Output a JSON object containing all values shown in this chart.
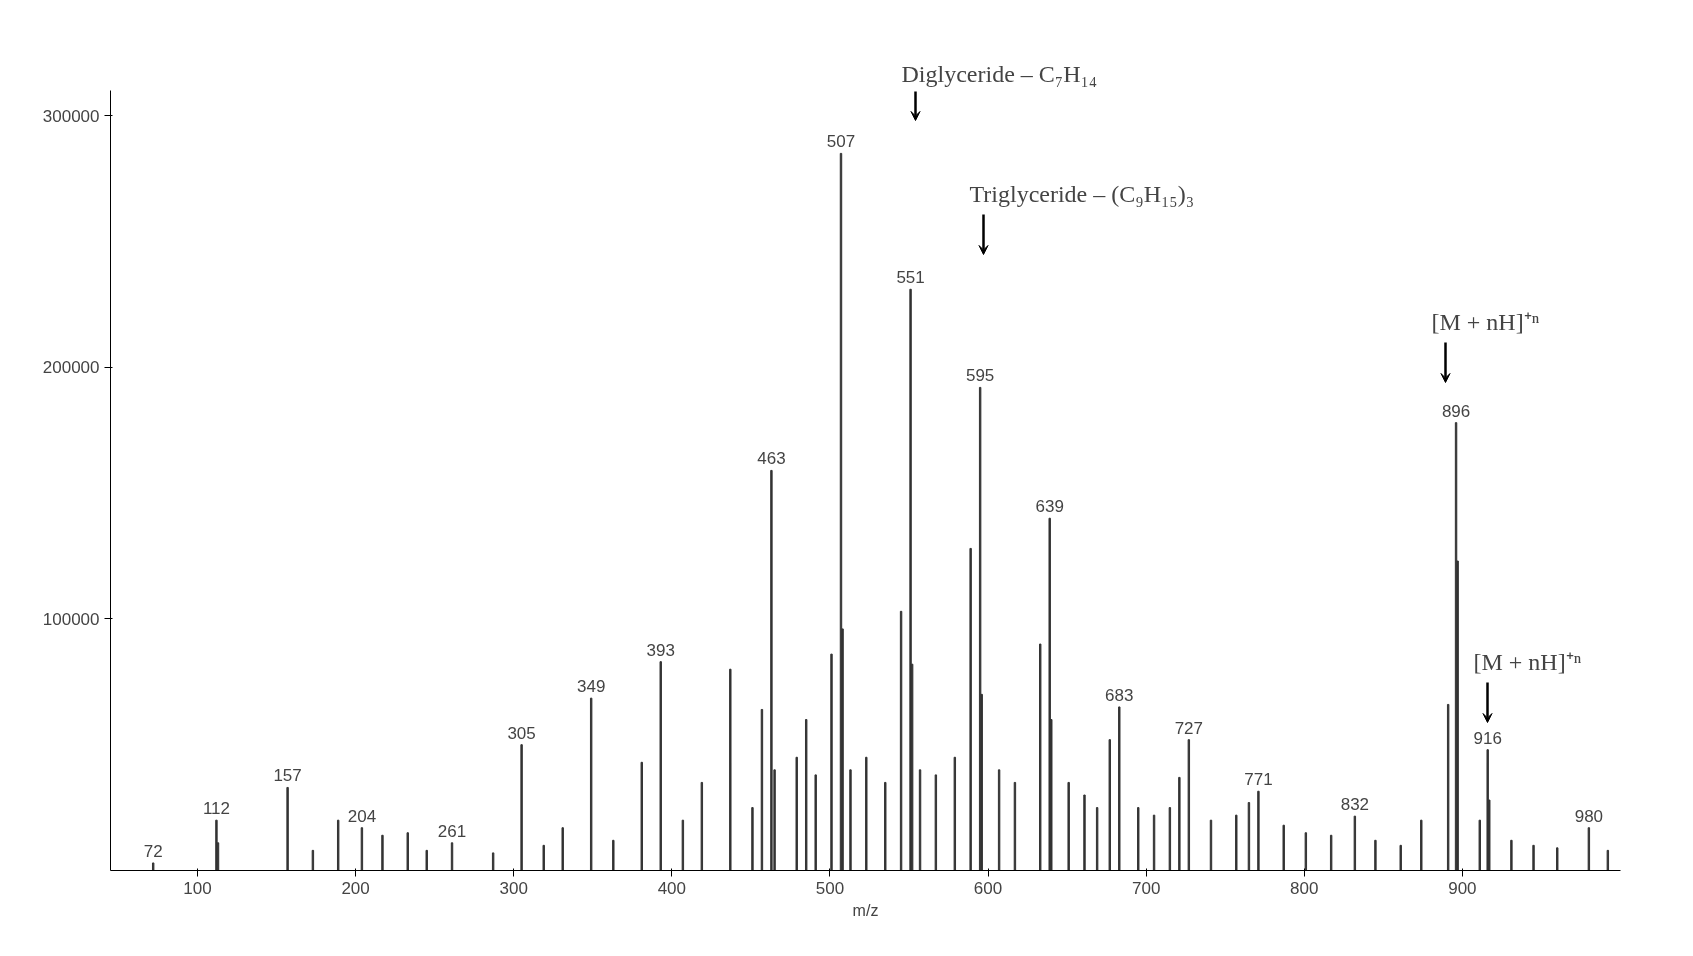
{
  "chart_data": {
    "type": "bar",
    "xlabel": "m/z",
    "x": [
      72,
      112,
      113,
      157,
      173,
      189,
      204,
      217,
      233,
      245,
      261,
      287,
      305,
      319,
      331,
      349,
      363,
      381,
      393,
      407,
      419,
      437,
      451,
      457,
      463,
      465,
      479,
      485,
      491,
      501,
      507,
      508,
      513,
      523,
      535,
      545,
      551,
      552,
      557,
      567,
      579,
      589,
      595,
      596,
      607,
      617,
      633,
      639,
      640,
      651,
      661,
      669,
      677,
      683,
      695,
      705,
      715,
      721,
      727,
      741,
      757,
      765,
      771,
      787,
      801,
      817,
      832,
      845,
      861,
      874,
      891,
      896,
      897,
      911,
      916,
      917,
      931,
      945,
      960,
      980,
      992
    ],
    "values": [
      3000,
      20000,
      11000,
      33000,
      8000,
      20000,
      17000,
      14000,
      15000,
      8000,
      11000,
      7000,
      50000,
      10000,
      17000,
      68500,
      12000,
      43000,
      83000,
      20000,
      35000,
      80000,
      25000,
      64000,
      159000,
      40000,
      45000,
      60000,
      38000,
      86000,
      285000,
      96000,
      40000,
      45000,
      35000,
      103000,
      231000,
      82000,
      40000,
      38000,
      45000,
      128000,
      192000,
      70000,
      40000,
      35000,
      90000,
      140000,
      60000,
      35000,
      30000,
      25000,
      52000,
      65000,
      25000,
      22000,
      25000,
      37000,
      52000,
      20000,
      22000,
      27000,
      31500,
      18000,
      15000,
      14000,
      21600,
      12000,
      10000,
      20000,
      66000,
      178000,
      123000,
      20000,
      48000,
      28000,
      12000,
      10000,
      9000,
      17000,
      8000
    ],
    "color": "#333333",
    "xlim": [
      45,
      1000
    ],
    "ylim": [
      0,
      310000
    ],
    "xticks": [
      100,
      200,
      300,
      400,
      500,
      600,
      700,
      800,
      900
    ],
    "yticks": [
      100000,
      200000,
      300000
    ],
    "annotations": [
      "Diglyceride – C₇H₁₄",
      "Triglyceride – (C₉H₁₅)₃",
      "[M + nH]⁺ⁿ",
      "[M + nH]⁺ⁿ",
      {
        "text": "72",
        "x": 72,
        "y": 3000
      },
      {
        "text": "112",
        "x": 112,
        "y": 20000
      },
      {
        "text": "157",
        "x": 157,
        "y": 33000
      },
      {
        "text": "204",
        "x": 204,
        "y": 17000
      },
      {
        "text": "261",
        "x": 261,
        "y": 11000
      },
      {
        "text": "305",
        "x": 305,
        "y": 50000
      },
      {
        "text": "349",
        "x": 349,
        "y": 68500
      },
      {
        "text": "393",
        "x": 393,
        "y": 83000
      },
      {
        "text": "463",
        "x": 463,
        "y": 159000
      },
      {
        "text": "507",
        "x": 507,
        "y": 285000
      },
      {
        "text": "551",
        "x": 551,
        "y": 231000
      },
      {
        "text": "595",
        "x": 595,
        "y": 192000
      },
      {
        "text": "639",
        "x": 639,
        "y": 140000
      },
      {
        "text": "683",
        "x": 683,
        "y": 65000
      },
      {
        "text": "727",
        "x": 727,
        "y": 52000
      },
      {
        "text": "771",
        "x": 771,
        "y": 31500
      },
      {
        "text": "832",
        "x": 832,
        "y": 21600
      },
      {
        "text": "896",
        "x": 896,
        "y": 178000
      },
      {
        "text": "916",
        "x": 916,
        "y": 48000
      },
      {
        "text": "980",
        "x": 980,
        "y": 17000
      }
    ]
  }
}
